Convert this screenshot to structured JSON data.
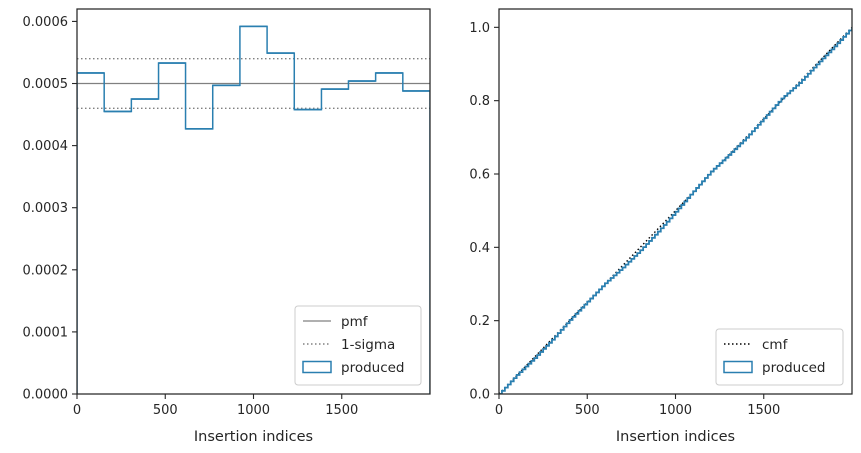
{
  "chart_data": [
    {
      "type": "line",
      "panel": "left",
      "xlabel": "Insertion indices",
      "ylabel": "",
      "xlim": [
        0,
        2000
      ],
      "ylim": [
        0,
        0.00062
      ],
      "xticks": [
        0,
        500,
        1000,
        1500
      ],
      "xtick_labels": [
        "0",
        "500",
        "1000",
        "1500"
      ],
      "yticks": [
        0,
        0.0001,
        0.0002,
        0.0003,
        0.0004,
        0.0005,
        0.0006
      ],
      "ytick_labels": [
        "0.0000",
        "0.0001",
        "0.0002",
        "0.0003",
        "0.0004",
        "0.0005",
        "0.0006"
      ],
      "legend": {
        "position": "bottom-right",
        "entries": [
          "pmf",
          "1-sigma",
          "produced"
        ]
      },
      "series": [
        {
          "name": "pmf",
          "style": "solid",
          "color": "#808080",
          "y": 0.0005
        },
        {
          "name": "1-sigma",
          "style": "dotted",
          "color": "#808080",
          "y": [
            0.00046,
            0.00054
          ]
        },
        {
          "name": "produced",
          "style": "step-histogram",
          "color": "#2a7fb0",
          "bin_edges": [
            0,
            154,
            308,
            462,
            615,
            769,
            923,
            1077,
            1231,
            1385,
            1538,
            1692,
            1846,
            2000
          ],
          "values": [
            0.000517,
            0.000455,
            0.000475,
            0.000533,
            0.000427,
            0.000497,
            0.000592,
            0.000549,
            0.000458,
            0.000491,
            0.000504,
            0.000517,
            0.000488
          ]
        }
      ]
    },
    {
      "type": "line",
      "panel": "right",
      "xlabel": "Insertion indices",
      "ylabel": "",
      "xlim": [
        0,
        2000
      ],
      "ylim": [
        0,
        1.05
      ],
      "xticks": [
        0,
        500,
        1000,
        1500
      ],
      "xtick_labels": [
        "0",
        "500",
        "1000",
        "1500"
      ],
      "yticks": [
        0,
        0.2,
        0.4,
        0.6,
        0.8,
        1.0
      ],
      "ytick_labels": [
        "0.0",
        "0.2",
        "0.4",
        "0.6",
        "0.8",
        "1.0"
      ],
      "legend": {
        "position": "bottom-right",
        "entries": [
          "cmf",
          "produced"
        ]
      },
      "series": [
        {
          "name": "cmf",
          "style": "dotted",
          "color": "#000000",
          "x": [
            0,
            2000
          ],
          "y": [
            0,
            1.0
          ]
        },
        {
          "name": "produced",
          "style": "step",
          "color": "#2a7fb0",
          "x": [
            0,
            100,
            200,
            300,
            400,
            500,
            600,
            700,
            800,
            900,
            1000,
            1100,
            1200,
            1300,
            1400,
            1500,
            1600,
            1700,
            1800,
            1900,
            2000
          ],
          "y": [
            0,
            0.052,
            0.098,
            0.148,
            0.202,
            0.252,
            0.302,
            0.345,
            0.392,
            0.443,
            0.497,
            0.553,
            0.607,
            0.652,
            0.699,
            0.752,
            0.806,
            0.848,
            0.899,
            0.948,
            1.0
          ]
        }
      ]
    }
  ]
}
